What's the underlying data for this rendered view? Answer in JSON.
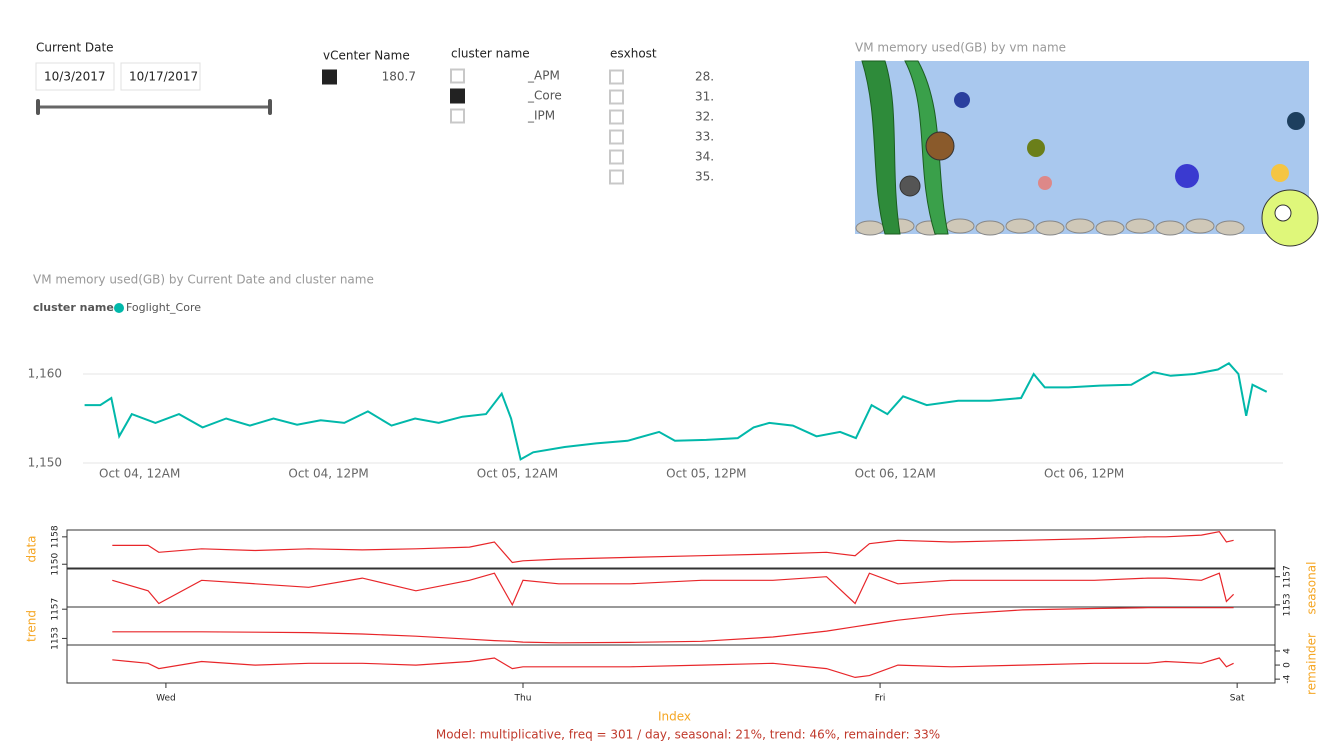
{
  "date_slicer": {
    "title": "Current Date",
    "start": "10/3/2017",
    "end": "10/17/2017"
  },
  "vcenter_slicer": {
    "title": "vCenter Name",
    "items": [
      {
        "label": "180.7",
        "checked": true
      }
    ]
  },
  "cluster_slicer": {
    "title": "cluster name",
    "items": [
      {
        "label": "_APM",
        "checked": false
      },
      {
        "label": "_Core",
        "checked": true
      },
      {
        "label": "_IPM",
        "checked": false
      }
    ]
  },
  "esxhost_slicer": {
    "title": "esxhost",
    "items": [
      {
        "label": "28.",
        "checked": false
      },
      {
        "label": "31.",
        "checked": false
      },
      {
        "label": "32.",
        "checked": false
      },
      {
        "label": "33.",
        "checked": false
      },
      {
        "label": "34.",
        "checked": false
      },
      {
        "label": "35.",
        "checked": false
      }
    ]
  },
  "image_visual": {
    "title": "VM memory used(GB) by vm name"
  },
  "chart_data": [
    {
      "type": "line",
      "title": "VM memory used(GB) by Current Date and cluster name",
      "legend_title": "cluster name",
      "x": [
        -3.5,
        -2.5,
        -1.8,
        -1.3,
        -0.5,
        1,
        2.5,
        4,
        5.5,
        7,
        8.5,
        10,
        11.5,
        13,
        14.5,
        16,
        17.5,
        19,
        20.5,
        22,
        23,
        23.6,
        24.2,
        25,
        27,
        29,
        31,
        33,
        34,
        36,
        38,
        39,
        40,
        41.5,
        43,
        44.5,
        45.5,
        46.5,
        47.5,
        48.5,
        50,
        52,
        54,
        56,
        56.8,
        57.5,
        59,
        61,
        63,
        64.4,
        65.5,
        67,
        68.5,
        69.2,
        69.8,
        70.3,
        70.7,
        71.6
      ],
      "series": [
        {
          "name": "Foglight_Core",
          "color": "#01B8AA",
          "values": [
            1156.5,
            1156.5,
            1157.3,
            1153,
            1155.5,
            1154.5,
            1155.5,
            1154,
            1155,
            1154.2,
            1155,
            1154.3,
            1154.8,
            1154.5,
            1155.8,
            1154.2,
            1155,
            1154.5,
            1155.2,
            1155.5,
            1157.8,
            1155,
            1150.4,
            1151.2,
            1151.8,
            1152.2,
            1152.5,
            1153.5,
            1152.5,
            1152.6,
            1152.8,
            1154,
            1154.5,
            1154.2,
            1153,
            1153.5,
            1152.8,
            1156.5,
            1155.5,
            1157.5,
            1156.5,
            1157,
            1157,
            1157.3,
            1160,
            1158.5,
            1158.5,
            1158.7,
            1158.8,
            1160.2,
            1159.8,
            1160,
            1160.5,
            1161.2,
            1160,
            1155.3,
            1158.8,
            1158
          ]
        }
      ],
      "xlim": [
        -3.6,
        72
      ],
      "xticks": [
        {
          "value": 0,
          "label": "Oct 04, 12AM"
        },
        {
          "value": 12,
          "label": "Oct 04, 12PM"
        },
        {
          "value": 24,
          "label": "Oct 05, 12AM"
        },
        {
          "value": 36,
          "label": "Oct 05, 12PM"
        },
        {
          "value": 48,
          "label": "Oct 06, 12AM"
        },
        {
          "value": 60,
          "label": "Oct 06, 12PM"
        }
      ],
      "ylim": [
        1150,
        1162
      ],
      "yticks": [
        {
          "value": 1150,
          "label": "1,150"
        },
        {
          "value": 1160,
          "label": "1,160"
        }
      ],
      "grid": true
    },
    {
      "type": "decomposition",
      "color": "#e8262a",
      "xlabel": "Index",
      "caption": "Model: multiplicative, freq = 301 / day, seasonal: 21%, trend: 46%, remainder: 33%",
      "x": [
        -0.15,
        -0.05,
        -0.02,
        0.1,
        0.25,
        0.4,
        0.55,
        0.7,
        0.85,
        0.92,
        0.97,
        1.0,
        1.1,
        1.3,
        1.5,
        1.7,
        1.85,
        1.93,
        1.97,
        2.05,
        2.2,
        2.4,
        2.6,
        2.75,
        2.8,
        2.9,
        2.95,
        2.97,
        2.99
      ],
      "xlim": [
        -0.277,
        3.106
      ],
      "xticks": [
        {
          "value": 0,
          "label": "Wed"
        },
        {
          "value": 1,
          "label": "Thu"
        },
        {
          "value": 2,
          "label": "Fri"
        },
        {
          "value": 3,
          "label": "Sat"
        }
      ],
      "panels": [
        {
          "axis_label": "data",
          "side": "left",
          "ylim": [
            1148.9,
            1160
          ],
          "yticks": [
            1150,
            1158
          ],
          "values": [
            1155.5,
            1155.5,
            1153.5,
            1154.5,
            1154,
            1154.5,
            1154.2,
            1154.5,
            1155,
            1156.5,
            1150.5,
            1151,
            1151.5,
            1152,
            1152.5,
            1153,
            1153.5,
            1152.5,
            1156,
            1157,
            1156.5,
            1157,
            1157.5,
            1158,
            1158,
            1158.5,
            1159.5,
            1156.5,
            1157
          ]
        },
        {
          "axis_label": "seasonal",
          "side": "right",
          "ylim": [
            1152.7,
            1158.1
          ],
          "yticks": [
            1153,
            1157
          ],
          "values": [
            1156.5,
            1155,
            1153.2,
            1156.5,
            1156,
            1155.5,
            1156.8,
            1155,
            1156.5,
            1157.5,
            1153,
            1156.5,
            1156,
            1156,
            1156.5,
            1156.5,
            1157,
            1153.2,
            1157.5,
            1156,
            1156.5,
            1156.5,
            1156.5,
            1156.8,
            1156.8,
            1156.5,
            1157.5,
            1153.5,
            1154.5
          ]
        },
        {
          "axis_label": "trend",
          "side": "left",
          "ylim": [
            1152.1,
            1157.3
          ],
          "yticks": [
            1153,
            1157
          ],
          "values": [
            1153.9,
            1153.9,
            1153.9,
            1153.9,
            1153.85,
            1153.8,
            1153.6,
            1153.3,
            1152.9,
            1152.7,
            1152.6,
            1152.5,
            1152.4,
            1152.45,
            1152.6,
            1153.2,
            1154,
            1154.6,
            1154.9,
            1155.5,
            1156.3,
            1156.9,
            1157.1,
            1157.2,
            1157.2,
            1157.2,
            1157.2,
            1157.2,
            1157.2
          ]
        },
        {
          "axis_label": "remainder",
          "side": "right",
          "ylim": [
            -5.1,
            5.7
          ],
          "yticks": [
            -4,
            0,
            4
          ],
          "values": [
            1.5,
            0.5,
            -1,
            1,
            0,
            0.5,
            0.5,
            0,
            1,
            2,
            -1,
            -0.5,
            -0.5,
            -0.5,
            0,
            0.5,
            -1,
            -3.5,
            -3,
            0,
            -0.5,
            0,
            0.5,
            0.5,
            1,
            0.5,
            2,
            -0.5,
            0.5
          ]
        }
      ]
    }
  ]
}
